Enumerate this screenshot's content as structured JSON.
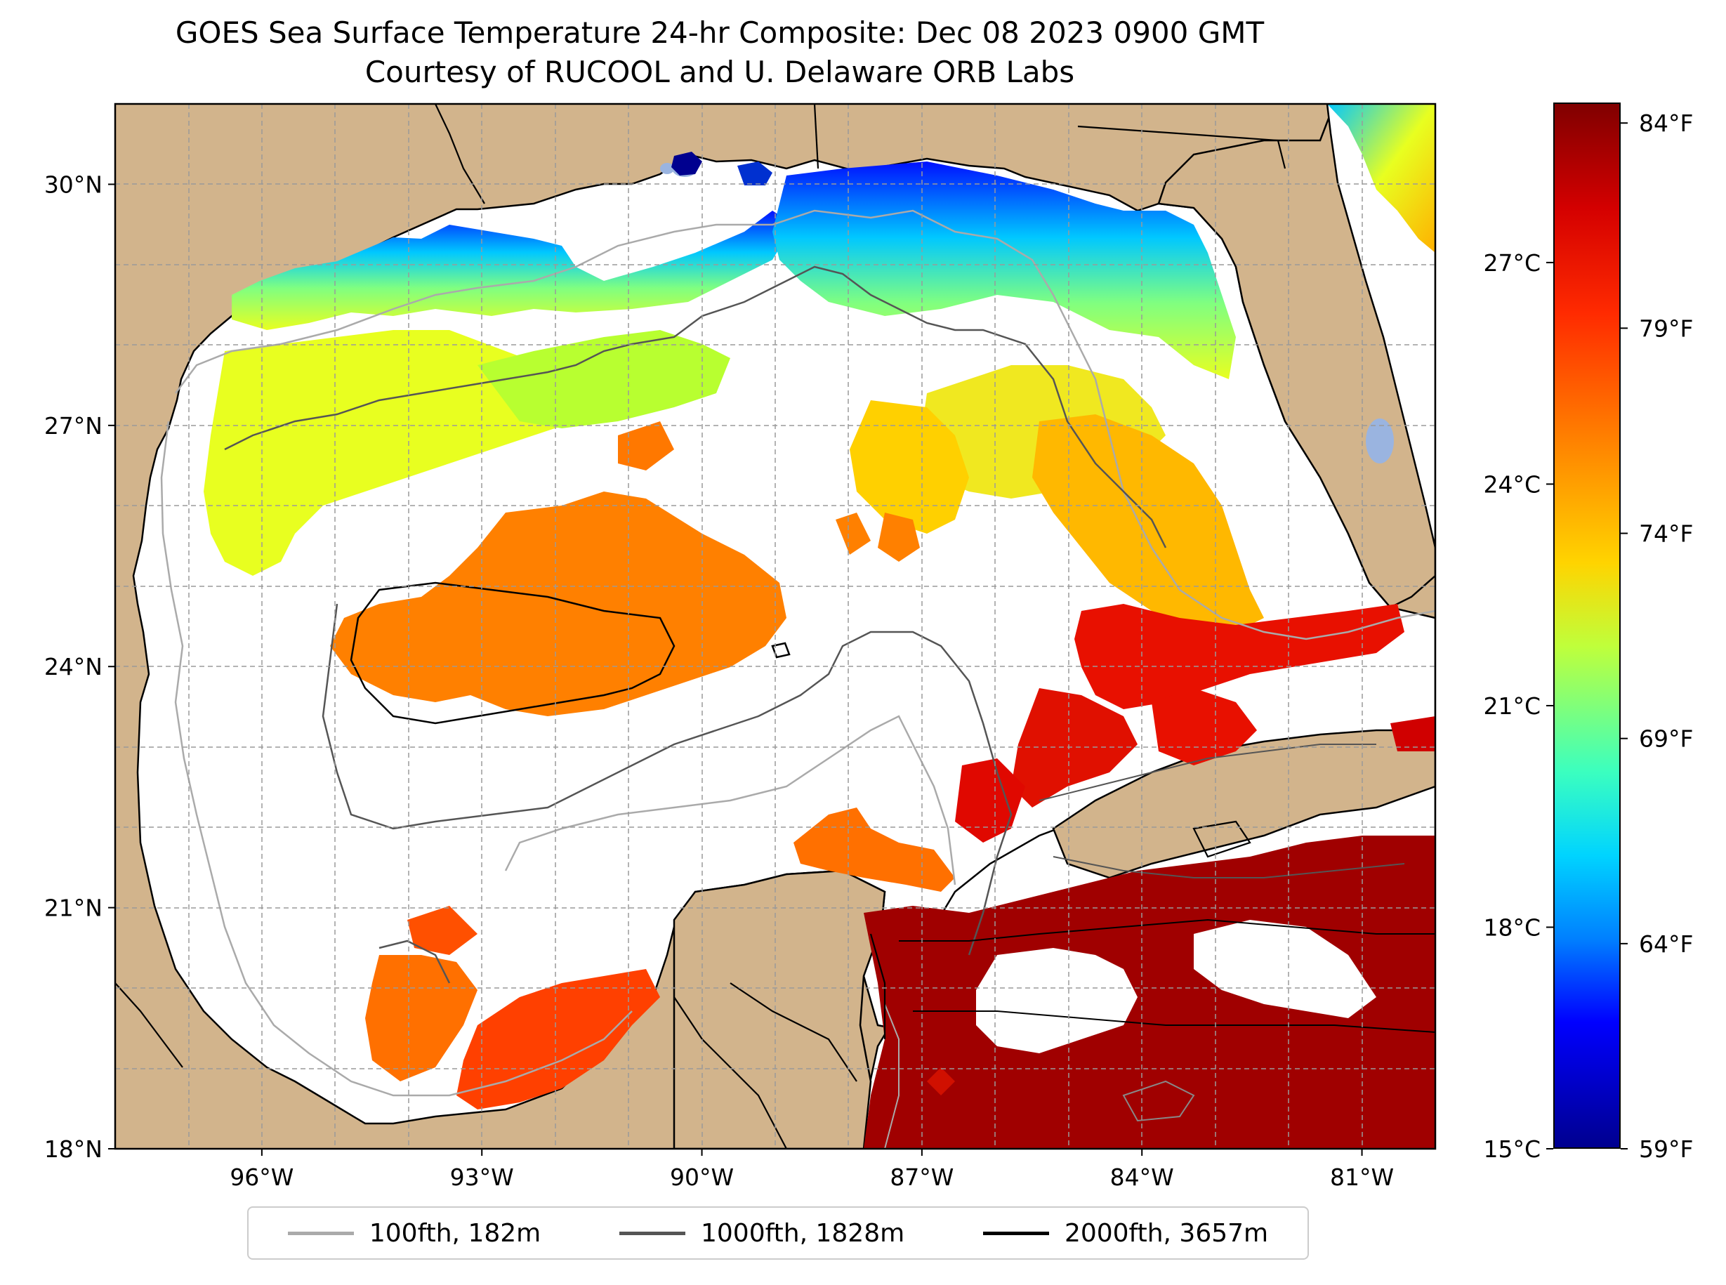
{
  "title": {
    "line1": "GOES Sea Surface Temperature 24-hr Composite: Dec 08 2023 0900 GMT",
    "line2": "Courtesy of RUCOOL and U. Delaware ORB Labs"
  },
  "map": {
    "extent": {
      "lon_min": -98,
      "lon_max": -80,
      "lat_min": 18,
      "lat_max": 31
    },
    "lat_ticks": [
      {
        "value": 18,
        "label": "18°N"
      },
      {
        "value": 21,
        "label": "21°N"
      },
      {
        "value": 24,
        "label": "24°N"
      },
      {
        "value": 27,
        "label": "27°N"
      },
      {
        "value": 30,
        "label": "30°N"
      }
    ],
    "lon_ticks": [
      {
        "value": -96,
        "label": "96°W"
      },
      {
        "value": -93,
        "label": "93°W"
      },
      {
        "value": -90,
        "label": "90°W"
      },
      {
        "value": -87,
        "label": "87°W"
      },
      {
        "value": -84,
        "label": "84°W"
      },
      {
        "value": -81,
        "label": "81°W"
      }
    ],
    "land_color": "#d2b48c",
    "water_color": "#ffffff",
    "lake_color": "#9ab4e0",
    "gridlines": true
  },
  "legend": {
    "items": [
      {
        "label": "100fth, 182m",
        "color": "#aaaaaa"
      },
      {
        "label": "1000fth, 1828m",
        "color": "#555555"
      },
      {
        "label": "2000fth, 3657m",
        "color": "#000000"
      }
    ]
  },
  "colorbar": {
    "colormap": "jet",
    "f_min": 59,
    "f_max": 84.5,
    "fahrenheit_ticks": [
      {
        "value": 84,
        "label": "84°F"
      },
      {
        "value": 79,
        "label": "79°F"
      },
      {
        "value": 74,
        "label": "74°F"
      },
      {
        "value": 69,
        "label": "69°F"
      },
      {
        "value": 64,
        "label": "64°F"
      },
      {
        "value": 59,
        "label": "59°F"
      }
    ],
    "celsius_ticks": [
      {
        "value": 27,
        "label": "27°C"
      },
      {
        "value": 24,
        "label": "24°C"
      },
      {
        "value": 21,
        "label": "21°C"
      },
      {
        "value": 18,
        "label": "18°C"
      },
      {
        "value": 15,
        "label": "15°C"
      }
    ]
  }
}
